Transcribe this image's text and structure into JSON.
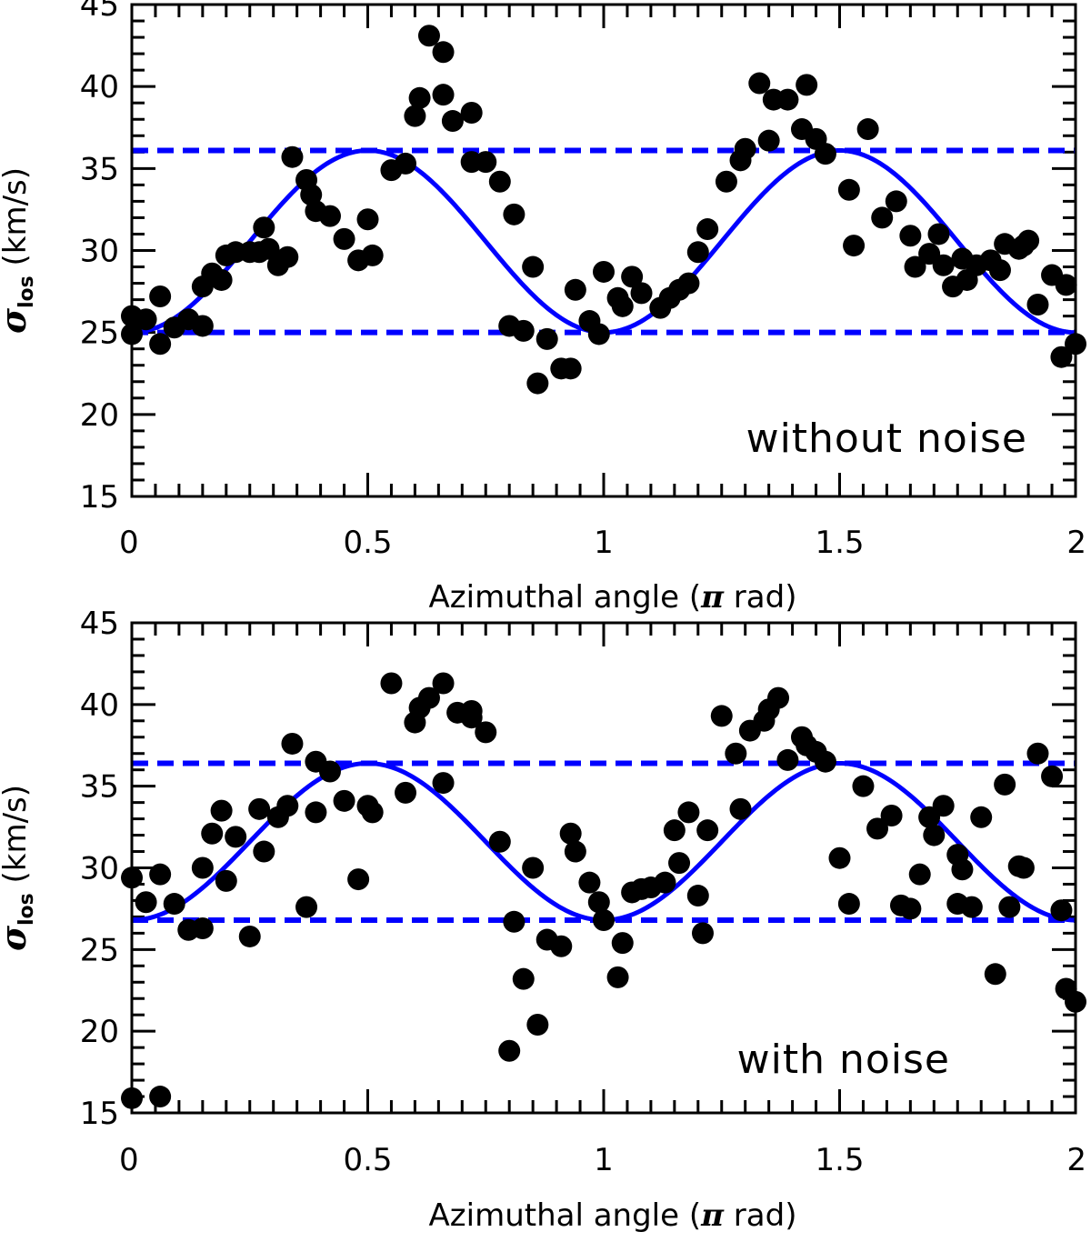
{
  "colors": {
    "model": "#0000ff",
    "points": "#000000",
    "axes": "#000000"
  },
  "chart_data": [
    {
      "type": "scatter",
      "panel": "top",
      "annotation": "without noise",
      "xlabel": {
        "prefix": "Azimuthal angle (",
        "symbol": "π",
        "suffix": " rad)"
      },
      "ylabel": {
        "prefix": "",
        "symbol": "σ",
        "subscript": "los",
        "suffix": " (km/s)"
      },
      "xlim": [
        0,
        2
      ],
      "ylim": [
        15,
        45
      ],
      "xticks": [
        0,
        0.5,
        1,
        1.5,
        2
      ],
      "xtick_labels": [
        "0",
        "0.5",
        "1",
        "1.5",
        "2"
      ],
      "yticks": [
        15,
        20,
        25,
        30,
        35,
        40,
        45
      ],
      "ytick_labels": [
        "15",
        "20",
        "25",
        "30",
        "35",
        "40",
        "45"
      ],
      "model": {
        "type": "sinusoid",
        "min": 25.0,
        "max": 36.1,
        "period": 1
      },
      "hlines": [
        36.1,
        25.0
      ],
      "points": [
        [
          0,
          26.0
        ],
        [
          0,
          24.9
        ],
        [
          0.03,
          25.8
        ],
        [
          0.06,
          27.2
        ],
        [
          0.06,
          24.3
        ],
        [
          0.09,
          25.3
        ],
        [
          0.12,
          25.8
        ],
        [
          0.15,
          25.4
        ],
        [
          0.15,
          27.8
        ],
        [
          0.17,
          28.6
        ],
        [
          0.19,
          28.2
        ],
        [
          0.2,
          29.7
        ],
        [
          0.22,
          29.9
        ],
        [
          0.25,
          29.9
        ],
        [
          0.27,
          29.9
        ],
        [
          0.28,
          31.4
        ],
        [
          0.29,
          30.1
        ],
        [
          0.31,
          29.1
        ],
        [
          0.33,
          29.6
        ],
        [
          0.34,
          35.7
        ],
        [
          0.37,
          34.3
        ],
        [
          0.38,
          33.4
        ],
        [
          0.39,
          32.4
        ],
        [
          0.42,
          32.1
        ],
        [
          0.45,
          30.7
        ],
        [
          0.48,
          29.4
        ],
        [
          0.5,
          31.9
        ],
        [
          0.51,
          29.7
        ],
        [
          0.55,
          34.9
        ],
        [
          0.58,
          35.3
        ],
        [
          0.6,
          38.2
        ],
        [
          0.61,
          39.3
        ],
        [
          0.63,
          43.1
        ],
        [
          0.66,
          42.1
        ],
        [
          0.66,
          39.5
        ],
        [
          0.68,
          37.9
        ],
        [
          0.72,
          38.4
        ],
        [
          0.72,
          35.4
        ],
        [
          0.75,
          35.4
        ],
        [
          0.78,
          34.2
        ],
        [
          0.81,
          32.2
        ],
        [
          0.8,
          25.4
        ],
        [
          0.83,
          25.1
        ],
        [
          0.85,
          29.0
        ],
        [
          0.86,
          21.9
        ],
        [
          0.88,
          24.6
        ],
        [
          0.91,
          22.8
        ],
        [
          0.93,
          22.8
        ],
        [
          0.94,
          27.6
        ],
        [
          0.97,
          25.7
        ],
        [
          0.99,
          24.9
        ],
        [
          1.0,
          28.7
        ],
        [
          1.03,
          27.1
        ],
        [
          1.04,
          26.6
        ],
        [
          1.06,
          28.4
        ],
        [
          1.08,
          27.4
        ],
        [
          1.12,
          26.5
        ],
        [
          1.14,
          27.1
        ],
        [
          1.16,
          27.6
        ],
        [
          1.18,
          28.0
        ],
        [
          1.2,
          29.9
        ],
        [
          1.22,
          31.3
        ],
        [
          1.26,
          34.2
        ],
        [
          1.29,
          35.5
        ],
        [
          1.3,
          36.2
        ],
        [
          1.33,
          40.2
        ],
        [
          1.35,
          36.7
        ],
        [
          1.36,
          39.2
        ],
        [
          1.39,
          39.2
        ],
        [
          1.42,
          37.4
        ],
        [
          1.43,
          40.1
        ],
        [
          1.45,
          36.8
        ],
        [
          1.47,
          35.9
        ],
        [
          1.52,
          33.7
        ],
        [
          1.53,
          30.3
        ],
        [
          1.56,
          37.4
        ],
        [
          1.59,
          32.0
        ],
        [
          1.62,
          33.0
        ],
        [
          1.65,
          30.9
        ],
        [
          1.66,
          29.0
        ],
        [
          1.69,
          29.8
        ],
        [
          1.71,
          31.0
        ],
        [
          1.72,
          29.1
        ],
        [
          1.74,
          27.8
        ],
        [
          1.76,
          29.5
        ],
        [
          1.77,
          28.2
        ],
        [
          1.79,
          29.1
        ],
        [
          1.82,
          29.4
        ],
        [
          1.84,
          28.8
        ],
        [
          1.85,
          30.4
        ],
        [
          1.88,
          30.1
        ],
        [
          1.89,
          30.3
        ],
        [
          1.9,
          30.6
        ],
        [
          1.92,
          26.7
        ],
        [
          1.95,
          28.5
        ],
        [
          1.97,
          23.5
        ],
        [
          1.98,
          27.9
        ],
        [
          2.0,
          24.3
        ]
      ]
    },
    {
      "type": "scatter",
      "panel": "bottom",
      "annotation": "with noise",
      "xlabel": {
        "prefix": "Azimuthal angle (",
        "symbol": "π",
        "suffix": " rad)"
      },
      "ylabel": {
        "prefix": "",
        "symbol": "σ",
        "subscript": "los",
        "suffix": " (km/s)"
      },
      "xlim": [
        0,
        2
      ],
      "ylim": [
        15,
        45
      ],
      "xticks": [
        0,
        0.5,
        1,
        1.5,
        2
      ],
      "xtick_labels": [
        "0",
        "0.5",
        "1",
        "1.5",
        "2"
      ],
      "yticks": [
        15,
        20,
        25,
        30,
        35,
        40,
        45
      ],
      "ytick_labels": [
        "15",
        "20",
        "25",
        "30",
        "35",
        "40",
        "45"
      ],
      "model": {
        "type": "sinusoid",
        "min": 26.8,
        "max": 36.4,
        "period": 1
      },
      "hlines": [
        36.4,
        26.8
      ],
      "points": [
        [
          0,
          29.4
        ],
        [
          0,
          15.9
        ],
        [
          0.03,
          27.9
        ],
        [
          0.06,
          29.6
        ],
        [
          0.06,
          16.0
        ],
        [
          0.09,
          27.8
        ],
        [
          0.12,
          26.2
        ],
        [
          0.15,
          26.3
        ],
        [
          0.15,
          30.0
        ],
        [
          0.17,
          32.1
        ],
        [
          0.19,
          33.5
        ],
        [
          0.2,
          29.2
        ],
        [
          0.22,
          31.9
        ],
        [
          0.25,
          25.8
        ],
        [
          0.27,
          33.6
        ],
        [
          0.28,
          31.0
        ],
        [
          0.31,
          33.1
        ],
        [
          0.33,
          33.8
        ],
        [
          0.34,
          37.6
        ],
        [
          0.37,
          27.6
        ],
        [
          0.39,
          36.5
        ],
        [
          0.39,
          33.4
        ],
        [
          0.42,
          35.9
        ],
        [
          0.45,
          34.1
        ],
        [
          0.48,
          29.3
        ],
        [
          0.5,
          33.8
        ],
        [
          0.51,
          33.4
        ],
        [
          0.55,
          41.3
        ],
        [
          0.58,
          34.6
        ],
        [
          0.6,
          38.9
        ],
        [
          0.61,
          39.8
        ],
        [
          0.63,
          40.4
        ],
        [
          0.66,
          41.3
        ],
        [
          0.66,
          35.2
        ],
        [
          0.69,
          39.5
        ],
        [
          0.72,
          39.6
        ],
        [
          0.72,
          39.2
        ],
        [
          0.75,
          38.3
        ],
        [
          0.78,
          31.6
        ],
        [
          0.8,
          18.8
        ],
        [
          0.81,
          26.7
        ],
        [
          0.83,
          23.2
        ],
        [
          0.85,
          30.0
        ],
        [
          0.86,
          20.4
        ],
        [
          0.88,
          25.6
        ],
        [
          0.91,
          25.2
        ],
        [
          0.93,
          32.1
        ],
        [
          0.94,
          31.0
        ],
        [
          0.97,
          29.1
        ],
        [
          0.99,
          27.9
        ],
        [
          1.0,
          26.8
        ],
        [
          1.03,
          23.3
        ],
        [
          1.04,
          25.4
        ],
        [
          1.06,
          28.5
        ],
        [
          1.08,
          28.7
        ],
        [
          1.1,
          28.8
        ],
        [
          1.13,
          29.1
        ],
        [
          1.15,
          32.3
        ],
        [
          1.16,
          30.3
        ],
        [
          1.18,
          33.4
        ],
        [
          1.2,
          28.3
        ],
        [
          1.21,
          26.0
        ],
        [
          1.22,
          32.3
        ],
        [
          1.25,
          39.3
        ],
        [
          1.28,
          37.0
        ],
        [
          1.29,
          33.6
        ],
        [
          1.31,
          38.4
        ],
        [
          1.34,
          39.0
        ],
        [
          1.35,
          39.7
        ],
        [
          1.37,
          40.4
        ],
        [
          1.39,
          36.6
        ],
        [
          1.42,
          38.0
        ],
        [
          1.43,
          37.5
        ],
        [
          1.45,
          37.1
        ],
        [
          1.47,
          36.5
        ],
        [
          1.5,
          30.6
        ],
        [
          1.52,
          27.8
        ],
        [
          1.55,
          35.0
        ],
        [
          1.58,
          32.4
        ],
        [
          1.61,
          33.2
        ],
        [
          1.63,
          27.7
        ],
        [
          1.65,
          27.5
        ],
        [
          1.67,
          29.6
        ],
        [
          1.69,
          33.1
        ],
        [
          1.7,
          32.0
        ],
        [
          1.72,
          33.8
        ],
        [
          1.75,
          30.8
        ],
        [
          1.75,
          27.8
        ],
        [
          1.76,
          29.9
        ],
        [
          1.78,
          27.6
        ],
        [
          1.8,
          33.1
        ],
        [
          1.83,
          23.5
        ],
        [
          1.85,
          35.1
        ],
        [
          1.86,
          27.6
        ],
        [
          1.88,
          30.1
        ],
        [
          1.89,
          30.0
        ],
        [
          1.92,
          37.0
        ],
        [
          1.95,
          35.6
        ],
        [
          1.97,
          27.4
        ],
        [
          1.98,
          22.6
        ],
        [
          2.0,
          21.8
        ]
      ]
    }
  ]
}
